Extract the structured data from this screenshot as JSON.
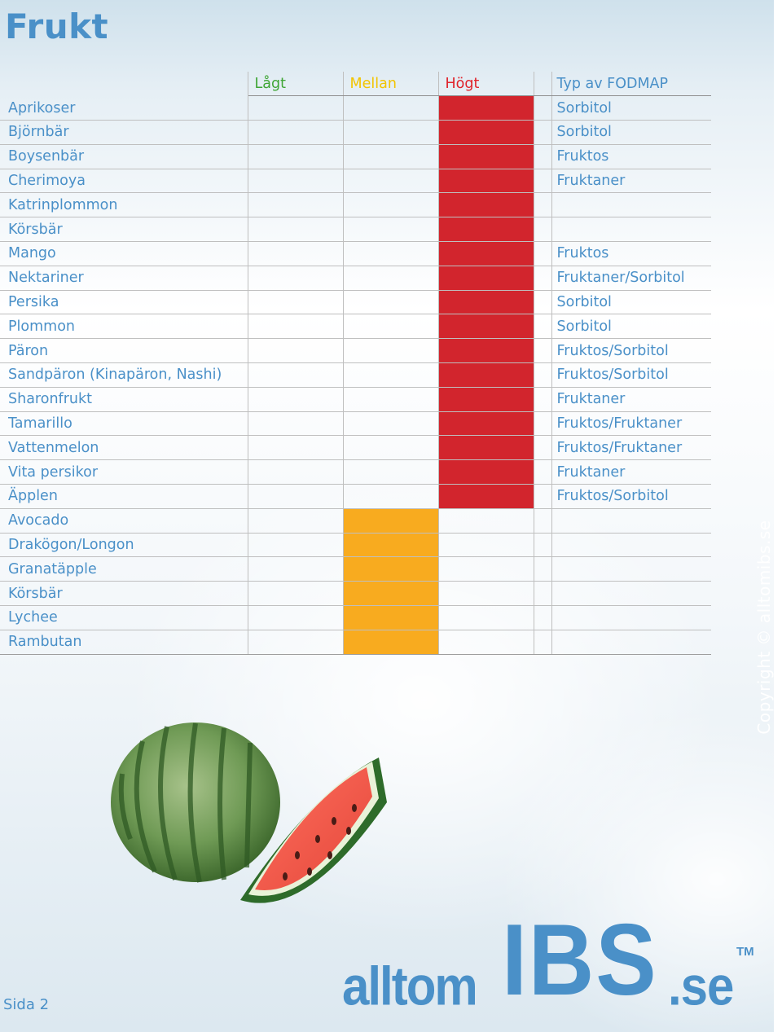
{
  "page": {
    "title": "Frukt",
    "copyright": "Copyright © alltomibs.se",
    "page_number": "Sida 2",
    "logo": {
      "part1": "alltom",
      "part2": "IBS",
      "part3": ".se",
      "tm": "TM"
    }
  },
  "table": {
    "headers": {
      "low": "Lågt",
      "mid": "Mellan",
      "high": "Högt",
      "type": "Typ av FODMAP"
    },
    "level_colors": {
      "low": "#3fa535",
      "mid": "#f8ab1f",
      "high": "#d2252d"
    },
    "rows": [
      {
        "name": "Aprikoser",
        "level": "high",
        "type": "Sorbitol"
      },
      {
        "name": "Björnbär",
        "level": "high",
        "type": "Sorbitol"
      },
      {
        "name": "Boysenbär",
        "level": "high",
        "type": "Fruktos"
      },
      {
        "name": "Cherimoya",
        "level": "high",
        "type": "Fruktaner"
      },
      {
        "name": "Katrinplommon",
        "level": "high",
        "type": ""
      },
      {
        "name": "Körsbär",
        "level": "high",
        "type": ""
      },
      {
        "name": "Mango",
        "level": "high",
        "type": "Fruktos"
      },
      {
        "name": "Nektariner",
        "level": "high",
        "type": "Fruktaner/Sorbitol"
      },
      {
        "name": "Persika",
        "level": "high",
        "type": "Sorbitol"
      },
      {
        "name": "Plommon",
        "level": "high",
        "type": "Sorbitol"
      },
      {
        "name": "Päron",
        "level": "high",
        "type": "Fruktos/Sorbitol"
      },
      {
        "name": "Sandpäron (Kinapäron, Nashi)",
        "level": "high",
        "type": "Fruktos/Sorbitol"
      },
      {
        "name": "Sharonfrukt",
        "level": "high",
        "type": "Fruktaner"
      },
      {
        "name": "Tamarillo",
        "level": "high",
        "type": "Fruktos/Fruktaner"
      },
      {
        "name": "Vattenmelon",
        "level": "high",
        "type": "Fruktos/Fruktaner"
      },
      {
        "name": "Vita persikor",
        "level": "high",
        "type": "Fruktaner"
      },
      {
        "name": "Äpplen",
        "level": "high",
        "type": "Fruktos/Sorbitol"
      },
      {
        "name": "Avocado",
        "level": "mid",
        "type": ""
      },
      {
        "name": "Drakögon/Longon",
        "level": "mid",
        "type": ""
      },
      {
        "name": "Granatäpple",
        "level": "mid",
        "type": ""
      },
      {
        "name": "Körsbär",
        "level": "mid",
        "type": ""
      },
      {
        "name": "Lychee",
        "level": "mid",
        "type": ""
      },
      {
        "name": "Rambutan",
        "level": "mid",
        "type": ""
      }
    ]
  }
}
